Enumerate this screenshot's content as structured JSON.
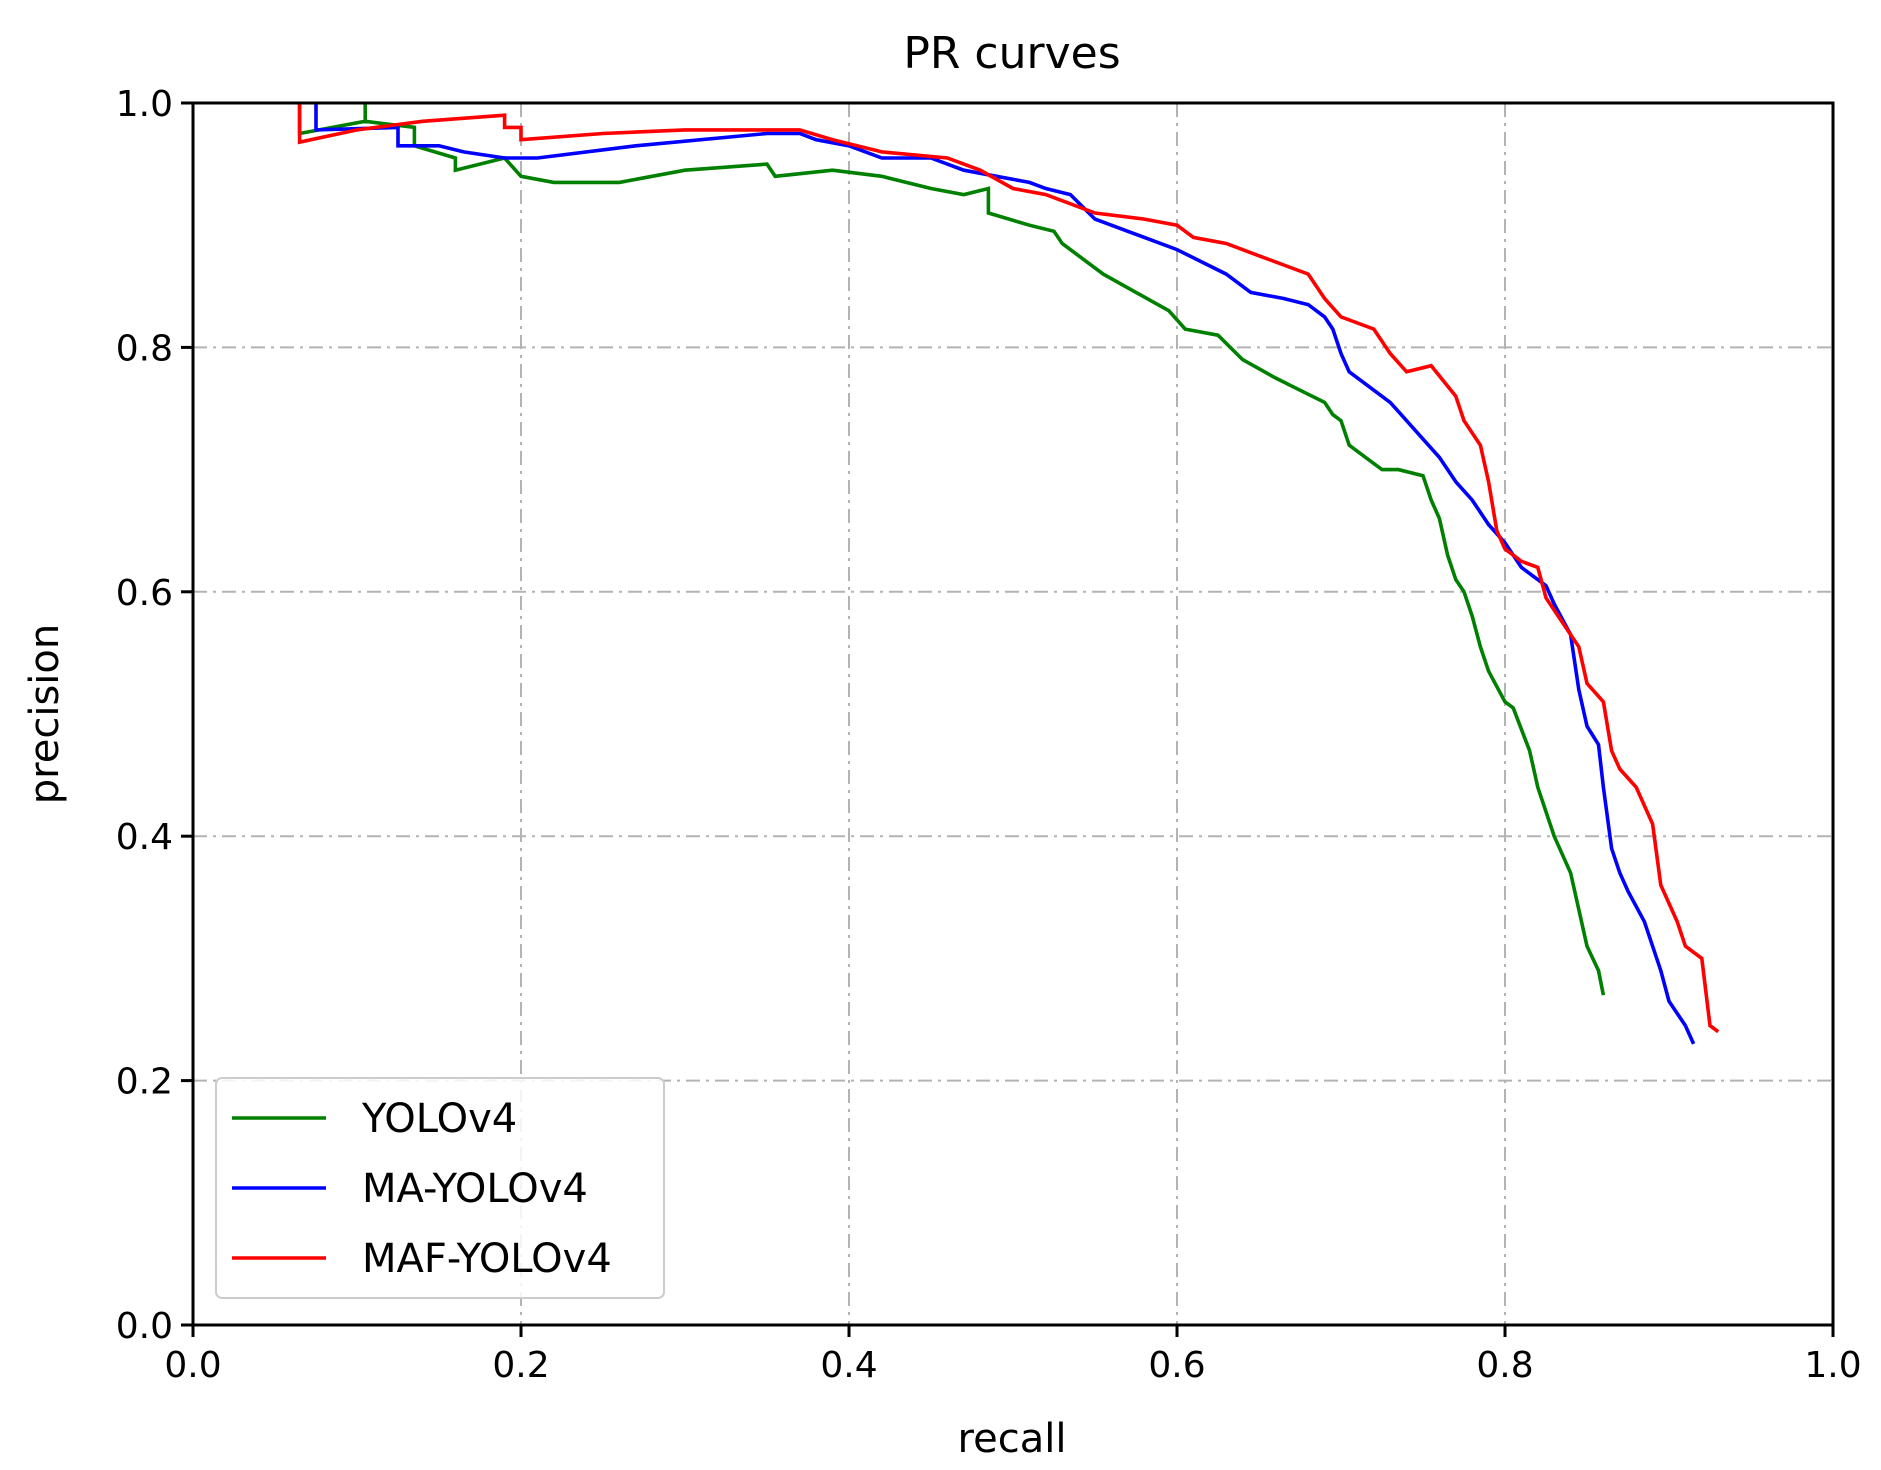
{
  "chart_data": {
    "type": "line",
    "title": "PR curves",
    "xlabel": "recall",
    "ylabel": "precision",
    "xlim": [
      0.0,
      1.0
    ],
    "ylim": [
      0.0,
      1.0
    ],
    "xticks": [
      "0.0",
      "0.2",
      "0.4",
      "0.6",
      "0.8",
      "1.0"
    ],
    "yticks": [
      "0.0",
      "0.2",
      "0.4",
      "0.6",
      "0.8",
      "1.0"
    ],
    "xtick_values": [
      0.0,
      0.2,
      0.4,
      0.6,
      0.8,
      1.0
    ],
    "ytick_values": [
      0.0,
      0.2,
      0.4,
      0.6,
      0.8,
      1.0
    ],
    "grid": true,
    "legend_position": "lower-left",
    "series": [
      {
        "name": "YOLOv4",
        "color": "#008000",
        "points": [
          [
            0.065,
            1.0
          ],
          [
            0.065,
            0.975
          ],
          [
            0.105,
            0.985
          ],
          [
            0.105,
            1.0
          ],
          [
            0.105,
            0.985
          ],
          [
            0.135,
            0.98
          ],
          [
            0.135,
            0.965
          ],
          [
            0.16,
            0.955
          ],
          [
            0.16,
            0.945
          ],
          [
            0.19,
            0.955
          ],
          [
            0.2,
            0.94
          ],
          [
            0.22,
            0.935
          ],
          [
            0.26,
            0.935
          ],
          [
            0.3,
            0.945
          ],
          [
            0.35,
            0.95
          ],
          [
            0.355,
            0.94
          ],
          [
            0.39,
            0.945
          ],
          [
            0.42,
            0.94
          ],
          [
            0.45,
            0.93
          ],
          [
            0.47,
            0.925
          ],
          [
            0.485,
            0.93
          ],
          [
            0.485,
            0.91
          ],
          [
            0.51,
            0.9
          ],
          [
            0.525,
            0.895
          ],
          [
            0.53,
            0.885
          ],
          [
            0.555,
            0.86
          ],
          [
            0.575,
            0.845
          ],
          [
            0.595,
            0.83
          ],
          [
            0.605,
            0.815
          ],
          [
            0.625,
            0.81
          ],
          [
            0.64,
            0.79
          ],
          [
            0.66,
            0.775
          ],
          [
            0.675,
            0.765
          ],
          [
            0.69,
            0.755
          ],
          [
            0.695,
            0.745
          ],
          [
            0.7,
            0.74
          ],
          [
            0.705,
            0.72
          ],
          [
            0.715,
            0.71
          ],
          [
            0.725,
            0.7
          ],
          [
            0.735,
            0.7
          ],
          [
            0.75,
            0.695
          ],
          [
            0.755,
            0.675
          ],
          [
            0.76,
            0.66
          ],
          [
            0.765,
            0.63
          ],
          [
            0.77,
            0.61
          ],
          [
            0.775,
            0.6
          ],
          [
            0.78,
            0.58
          ],
          [
            0.785,
            0.555
          ],
          [
            0.79,
            0.535
          ],
          [
            0.8,
            0.51
          ],
          [
            0.805,
            0.505
          ],
          [
            0.815,
            0.47
          ],
          [
            0.82,
            0.44
          ],
          [
            0.83,
            0.4
          ],
          [
            0.84,
            0.37
          ],
          [
            0.845,
            0.34
          ],
          [
            0.85,
            0.31
          ],
          [
            0.857,
            0.29
          ],
          [
            0.86,
            0.27
          ]
        ]
      },
      {
        "name": "MA-YOLOv4",
        "color": "#0000ff",
        "points": [
          [
            0.075,
            1.0
          ],
          [
            0.075,
            0.978
          ],
          [
            0.125,
            0.98
          ],
          [
            0.125,
            0.965
          ],
          [
            0.15,
            0.965
          ],
          [
            0.165,
            0.96
          ],
          [
            0.19,
            0.955
          ],
          [
            0.21,
            0.955
          ],
          [
            0.27,
            0.965
          ],
          [
            0.35,
            0.975
          ],
          [
            0.37,
            0.975
          ],
          [
            0.38,
            0.97
          ],
          [
            0.4,
            0.965
          ],
          [
            0.42,
            0.955
          ],
          [
            0.45,
            0.955
          ],
          [
            0.47,
            0.945
          ],
          [
            0.49,
            0.94
          ],
          [
            0.51,
            0.935
          ],
          [
            0.52,
            0.93
          ],
          [
            0.535,
            0.925
          ],
          [
            0.55,
            0.905
          ],
          [
            0.57,
            0.895
          ],
          [
            0.6,
            0.88
          ],
          [
            0.615,
            0.87
          ],
          [
            0.63,
            0.86
          ],
          [
            0.645,
            0.845
          ],
          [
            0.665,
            0.84
          ],
          [
            0.68,
            0.835
          ],
          [
            0.69,
            0.825
          ],
          [
            0.695,
            0.815
          ],
          [
            0.7,
            0.795
          ],
          [
            0.705,
            0.78
          ],
          [
            0.71,
            0.775
          ],
          [
            0.72,
            0.765
          ],
          [
            0.73,
            0.755
          ],
          [
            0.74,
            0.74
          ],
          [
            0.75,
            0.725
          ],
          [
            0.76,
            0.71
          ],
          [
            0.77,
            0.69
          ],
          [
            0.78,
            0.675
          ],
          [
            0.79,
            0.655
          ],
          [
            0.8,
            0.64
          ],
          [
            0.81,
            0.62
          ],
          [
            0.825,
            0.605
          ],
          [
            0.83,
            0.59
          ],
          [
            0.84,
            0.565
          ],
          [
            0.845,
            0.52
          ],
          [
            0.85,
            0.49
          ],
          [
            0.857,
            0.475
          ],
          [
            0.86,
            0.44
          ],
          [
            0.865,
            0.39
          ],
          [
            0.87,
            0.37
          ],
          [
            0.875,
            0.355
          ],
          [
            0.885,
            0.33
          ],
          [
            0.895,
            0.29
          ],
          [
            0.9,
            0.265
          ],
          [
            0.91,
            0.245
          ],
          [
            0.915,
            0.23
          ]
        ]
      },
      {
        "name": "MAF-YOLOv4",
        "color": "#ff0000",
        "points": [
          [
            0.065,
            1.0
          ],
          [
            0.065,
            0.968
          ],
          [
            0.1,
            0.978
          ],
          [
            0.14,
            0.985
          ],
          [
            0.19,
            0.99
          ],
          [
            0.19,
            0.98
          ],
          [
            0.2,
            0.98
          ],
          [
            0.2,
            0.97
          ],
          [
            0.25,
            0.975
          ],
          [
            0.3,
            0.978
          ],
          [
            0.37,
            0.978
          ],
          [
            0.39,
            0.97
          ],
          [
            0.42,
            0.96
          ],
          [
            0.46,
            0.955
          ],
          [
            0.48,
            0.945
          ],
          [
            0.5,
            0.93
          ],
          [
            0.52,
            0.925
          ],
          [
            0.55,
            0.91
          ],
          [
            0.58,
            0.905
          ],
          [
            0.6,
            0.9
          ],
          [
            0.61,
            0.89
          ],
          [
            0.63,
            0.885
          ],
          [
            0.65,
            0.875
          ],
          [
            0.67,
            0.865
          ],
          [
            0.68,
            0.86
          ],
          [
            0.69,
            0.84
          ],
          [
            0.7,
            0.825
          ],
          [
            0.72,
            0.815
          ],
          [
            0.73,
            0.795
          ],
          [
            0.74,
            0.78
          ],
          [
            0.755,
            0.785
          ],
          [
            0.77,
            0.76
          ],
          [
            0.775,
            0.74
          ],
          [
            0.785,
            0.72
          ],
          [
            0.79,
            0.69
          ],
          [
            0.795,
            0.65
          ],
          [
            0.8,
            0.635
          ],
          [
            0.81,
            0.625
          ],
          [
            0.82,
            0.62
          ],
          [
            0.825,
            0.595
          ],
          [
            0.835,
            0.575
          ],
          [
            0.845,
            0.555
          ],
          [
            0.85,
            0.525
          ],
          [
            0.86,
            0.51
          ],
          [
            0.865,
            0.47
          ],
          [
            0.87,
            0.455
          ],
          [
            0.88,
            0.44
          ],
          [
            0.89,
            0.41
          ],
          [
            0.895,
            0.36
          ],
          [
            0.905,
            0.33
          ],
          [
            0.91,
            0.31
          ],
          [
            0.92,
            0.3
          ],
          [
            0.925,
            0.245
          ],
          [
            0.93,
            0.24
          ]
        ]
      }
    ]
  }
}
